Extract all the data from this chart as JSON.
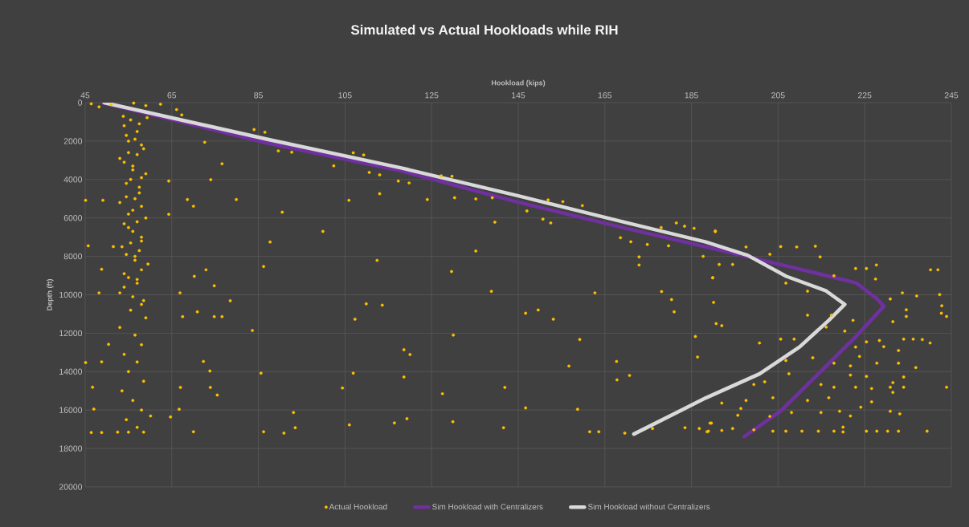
{
  "chart_data": {
    "type": "scatter",
    "title": "Simulated vs Actual Hookloads while RIH",
    "xlabel": "Hookload (kips)",
    "ylabel": "Depth (ft)",
    "xlim": [
      45,
      245
    ],
    "xticks": [
      45,
      65,
      85,
      105,
      125,
      145,
      165,
      185,
      205,
      225,
      245
    ],
    "ylim": [
      20000,
      0
    ],
    "yticks": [
      0,
      2000,
      4000,
      6000,
      8000,
      10000,
      12000,
      14000,
      16000,
      18000,
      20000
    ],
    "grid": true,
    "legend": "bottom",
    "series": [
      {
        "name": "Actual Hookload",
        "marker": "circle",
        "color": "#ffc000",
        "x": [
          55.5,
          57.5,
          54.5,
          56.5,
          58,
          55,
          57,
          54,
          56,
          58,
          55.5,
          57.5,
          54.5,
          56.5,
          58,
          55,
          57,
          54,
          56,
          58,
          55.5,
          57.5,
          54.5,
          56.5,
          58,
          55,
          57,
          54,
          56,
          58,
          46.4,
          48.2,
          56.2,
          62.4,
          66.1,
          67.3,
          51,
          59,
          53.8,
          59.3,
          54,
          57,
          55,
          58.5,
          53,
          56,
          59,
          54.5,
          57.5,
          53,
          56,
          59,
          55,
          58,
          53.5,
          56.5,
          59.5,
          54,
          57,
          53,
          58.5,
          55.5,
          59,
          53,
          56.5,
          58,
          54,
          57,
          55,
          58.5,
          53.5,
          56,
          58,
          54.5,
          57,
          55,
          58.5,
          52.5,
          45.1,
          49.1,
          46.7,
          47,
          46.4,
          48.8,
          84,
          86.5,
          89.6,
          92.7,
          106.9,
          109.3,
          110.6,
          113,
          72.6,
          76.6,
          74,
          64.3,
          68.6,
          70,
          79.9,
          64.3,
          90.5,
          99.9,
          87.7,
          45.7,
          51.5,
          86.2,
          48.8,
          72.9,
          70.2,
          112.4,
          74.8,
          48.2,
          66.9,
          78.5,
          109.9,
          113.6,
          67.5,
          70.9,
          74.8,
          76.6,
          107.3,
          83.6,
          50.4,
          45.1,
          48.8,
          72.3,
          73.8,
          85.6,
          106.9,
          67,
          73.9,
          75.5,
          104.4,
          93.1,
          66.7,
          64.7,
          60.1,
          106,
          116.4,
          70,
          86.2,
          90.9,
          93.5,
          113,
          105.9,
          102.4,
          117.3,
          127.2,
          129.7,
          130.3,
          135.2,
          139,
          124,
          119.8,
          139.6,
          147,
          150.7,
          152.5,
          151.9,
          155.3,
          159.8,
          168.6,
          171,
          174.8,
          179.7,
          178,
          181.5,
          183.4,
          185.6,
          187.7,
          190.5,
          191.4,
          135.2,
          129.6,
          138.8,
          162.7,
          146.7,
          149.6,
          153.1,
          130,
          159.2,
          118.6,
          120,
          156.7,
          118.6,
          167.7,
          167.8,
          170.7,
          141.9,
          127.5,
          146.7,
          158.7,
          119.3,
          129.9,
          141.6,
          161.5,
          163.6,
          169.6,
          172.9,
          172.9,
          178.1,
          180.4,
          181,
          185.9,
          186.4,
          189.9,
          190.1,
          190.7,
          183.5,
          186.8,
          189.3,
          188.6,
          176,
          190.5,
          197.6,
          205.6,
          209.3,
          213.6,
          214.7,
          203.1,
          194.5,
          189.9,
          206.8,
          211.8,
          217.9,
          222.9,
          225.4,
          227.7,
          227.5,
          230.9,
          233.7,
          237,
          240.2,
          241.9,
          242.3,
          242.8,
          242.7,
          243.9,
          234.6,
          234.6,
          231.5,
          217.3,
          211.8,
          222.3,
          216.1,
          220.4,
          192,
          200.7,
          205.6,
          208.7,
          225.4,
          228.4,
          234,
          236.2,
          238.3,
          240.1,
          222.9,
          229.4,
          232.8,
          206.8,
          213,
          217.9,
          221.7,
          227.8,
          232.8,
          236.8,
          223.8,
          207.5,
          199.4,
          201.9,
          214.9,
          217.9,
          222.9,
          226.6,
          230.9,
          234,
          243.9,
          221.7,
          225.4,
          234,
          231.5,
          231.5,
          197.6,
          203.8,
          211.8,
          216.7,
          226.6,
          192,
          196.4,
          208.1,
          214.9,
          219.2,
          224.1,
          230.9,
          233.1,
          203.1,
          189.6,
          195.7,
          221.7,
          188.9,
          192,
          194.5,
          199.4,
          203.8,
          206.8,
          210.5,
          214.3,
          217.9,
          220,
          220,
          225.4,
          227.8,
          230.3,
          232.8,
          239.4
        ],
        "values": [
          900,
          1100,
          1700,
          1900,
          2200,
          2600,
          2700,
          3100,
          3500,
          3900,
          4000,
          4400,
          4900,
          5000,
          5400,
          5800,
          6200,
          6300,
          6700,
          7200,
          7300,
          7700,
          7900,
          8200,
          8700,
          9100,
          9200,
          9600,
          10100,
          10500,
          60,
          220,
          20,
          80,
          360,
          640,
          100,
          150,
          710,
          780,
          1200,
          1500,
          2000,
          2400,
          2900,
          3300,
          3700,
          4200,
          4700,
          5200,
          5600,
          6000,
          6500,
          7000,
          7500,
          8000,
          8400,
          8900,
          9400,
          9900,
          10300,
          10800,
          11200,
          11700,
          12100,
          12600,
          13100,
          13500,
          14000,
          14500,
          15000,
          15500,
          16000,
          16500,
          16900,
          17150,
          17150,
          17150,
          5080,
          5080,
          14810,
          15950,
          17170,
          17170,
          1400,
          1540,
          2510,
          2580,
          2610,
          2720,
          3630,
          3760,
          2060,
          3180,
          4010,
          4080,
          5040,
          5390,
          5040,
          5810,
          5700,
          6700,
          7250,
          7450,
          7490,
          8530,
          8670,
          8700,
          9040,
          8210,
          9530,
          9900,
          9900,
          10310,
          10470,
          10540,
          11140,
          10890,
          11140,
          11140,
          11270,
          11860,
          12580,
          13530,
          13490,
          13470,
          13970,
          14080,
          14080,
          14820,
          14820,
          15220,
          14850,
          16130,
          15960,
          16360,
          16310,
          16770,
          16670,
          17130,
          17130,
          17200,
          16920,
          4740,
          5080,
          3290,
          4080,
          3810,
          3830,
          4950,
          5010,
          4950,
          5040,
          4180,
          6220,
          5640,
          6060,
          6260,
          5060,
          5150,
          5360,
          7030,
          7240,
          7380,
          7450,
          6500,
          6260,
          6430,
          6540,
          8000,
          6680,
          8420,
          7720,
          8790,
          9820,
          9900,
          10960,
          10790,
          11270,
          12100,
          12330,
          12860,
          13110,
          13710,
          14280,
          13470,
          14430,
          14200,
          14820,
          15150,
          15890,
          15960,
          16450,
          16610,
          16920,
          17130,
          17130,
          17200,
          8030,
          8450,
          9830,
          10250,
          10890,
          12170,
          13240,
          9110,
          10400,
          11500,
          16920,
          16960,
          16680,
          17130,
          16960,
          6710,
          7510,
          7490,
          7510,
          7470,
          8030,
          7890,
          8420,
          9110,
          9390,
          9810,
          9010,
          8630,
          8630,
          8450,
          9180,
          10220,
          9900,
          10060,
          8700,
          8700,
          9990,
          10570,
          10960,
          11130,
          10780,
          11130,
          11400,
          11060,
          11060,
          11330,
          11680,
          11890,
          11610,
          12510,
          12310,
          12310,
          12450,
          12380,
          12310,
          12310,
          12330,
          12510,
          12720,
          12700,
          12900,
          13420,
          13280,
          13560,
          13700,
          13560,
          13560,
          13790,
          13210,
          14110,
          14670,
          14530,
          14670,
          14810,
          14810,
          14880,
          14810,
          14810,
          14810,
          14180,
          14250,
          14280,
          14570,
          15080,
          15500,
          15360,
          15500,
          15360,
          15570,
          15640,
          15920,
          16130,
          16130,
          16060,
          15850,
          16060,
          16200,
          16330,
          16680,
          16270,
          16310,
          17100,
          17060,
          16960,
          17030,
          17100,
          17100,
          17100,
          17100,
          17100,
          16890,
          17140,
          17100,
          17100,
          17100,
          17100,
          17100
        ]
      },
      {
        "name": "Sim Hookload with Centralizers",
        "type": "line",
        "marker": "none",
        "line_style": "solid",
        "color": "#7030a0",
        "x": [
          49,
          87,
          118,
          145,
          170,
          192,
          205,
          213,
          223,
          227.8,
          229.4,
          223,
          214.3,
          205.6,
          197.2
        ],
        "values": [
          0,
          2100,
          3550,
          5180,
          6550,
          7700,
          8400,
          8830,
          9380,
          10200,
          10600,
          12170,
          14120,
          16050,
          17380
        ]
      },
      {
        "name": "Sim Hookload without Centralizers",
        "type": "line",
        "marker": "none",
        "line_style": "solid",
        "color": "#d9d9d9",
        "x": [
          49.4,
          88,
          118,
          145,
          170,
          188.3,
          198,
          206.9,
          216.1,
          220.4,
          216.7,
          210,
          200.7,
          188.3,
          171.7
        ],
        "values": [
          0,
          1950,
          3400,
          4850,
          6250,
          7250,
          7950,
          9040,
          9800,
          10500,
          11330,
          12710,
          14120,
          15370,
          17250
        ]
      }
    ]
  }
}
